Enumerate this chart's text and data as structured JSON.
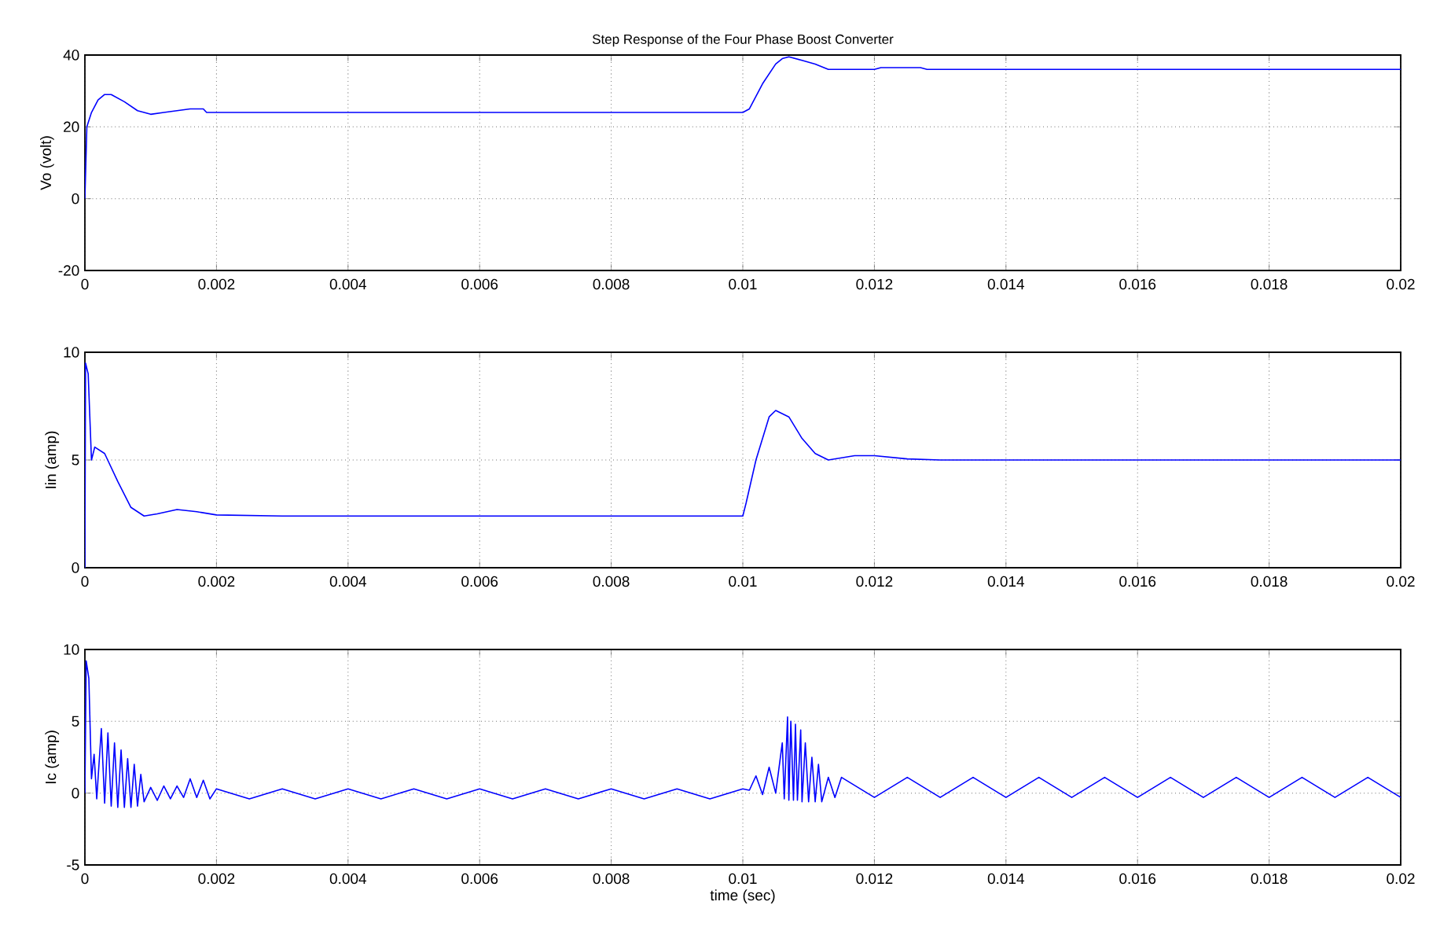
{
  "chart_data": [
    {
      "type": "line",
      "title": "Step Response of the Four Phase Boost Converter",
      "ylabel": "Vo (volt)",
      "x": [
        0,
        3e-05,
        0.0001,
        0.0002,
        0.0003,
        0.0004,
        0.0006,
        0.0008,
        0.001,
        0.0012,
        0.0014,
        0.0016,
        0.0018,
        0.00185,
        0.01,
        0.0101,
        0.0103,
        0.0105,
        0.0106,
        0.0107,
        0.0109,
        0.0111,
        0.0113,
        0.012,
        0.0121,
        0.0127,
        0.0128,
        0.02
      ],
      "series": [
        {
          "color": "#0000ff",
          "values": [
            0,
            20,
            24,
            27.5,
            29,
            29,
            27,
            24.5,
            23.5,
            24,
            24.5,
            25,
            25,
            24,
            24,
            25,
            32,
            37.5,
            39,
            39.5,
            38.5,
            37.5,
            36,
            36,
            36.5,
            36.5,
            36,
            36
          ]
        }
      ],
      "xlim": [
        0,
        0.02
      ],
      "ylim": [
        -20,
        40
      ],
      "xticks": [
        0,
        0.002,
        0.004,
        0.006,
        0.008,
        0.01,
        0.012,
        0.014,
        0.016,
        0.018,
        0.02
      ],
      "yticks": [
        -20,
        0,
        20,
        40
      ],
      "grid": true
    },
    {
      "type": "line",
      "ylabel": "Iin (amp)",
      "x": [
        0,
        1e-05,
        5e-05,
        0.0001,
        0.00015,
        0.0003,
        0.0005,
        0.0007,
        0.0009,
        0.0011,
        0.0014,
        0.0017,
        0.002,
        0.003,
        0.01,
        0.01005,
        0.0102,
        0.0104,
        0.0105,
        0.0107,
        0.0109,
        0.0111,
        0.0113,
        0.0117,
        0.012,
        0.0125,
        0.013,
        0.02
      ],
      "series": [
        {
          "color": "#0000ff",
          "values": [
            0,
            9.5,
            9,
            5,
            5.6,
            5.3,
            4,
            2.8,
            2.4,
            2.5,
            2.7,
            2.6,
            2.45,
            2.4,
            2.4,
            3,
            5,
            7,
            7.3,
            7,
            6,
            5.3,
            5,
            5.2,
            5.2,
            5.05,
            5,
            5
          ]
        }
      ],
      "xlim": [
        0,
        0.02
      ],
      "ylim": [
        0,
        10
      ],
      "xticks": [
        0,
        0.002,
        0.004,
        0.006,
        0.008,
        0.01,
        0.012,
        0.014,
        0.016,
        0.018,
        0.02
      ],
      "yticks": [
        0,
        5,
        10
      ],
      "grid": true
    },
    {
      "type": "line",
      "ylabel": "Ic (amp)",
      "xlabel": "time (sec)",
      "x": [
        0,
        2e-05,
        6e-05,
        0.0001,
        0.00014,
        0.00018,
        0.00025,
        0.0003,
        0.00035,
        0.0004,
        0.00045,
        0.0005,
        0.00055,
        0.0006,
        0.00065,
        0.0007,
        0.00075,
        0.0008,
        0.00085,
        0.0009,
        0.001,
        0.0011,
        0.0012,
        0.0013,
        0.0014,
        0.0015,
        0.0016,
        0.0017,
        0.0018,
        0.0019,
        0.002,
        0.0025,
        0.003,
        0.0035,
        0.004,
        0.0045,
        0.005,
        0.0055,
        0.006,
        0.0065,
        0.007,
        0.0075,
        0.008,
        0.0085,
        0.009,
        0.0095,
        0.01,
        0.0101,
        0.0102,
        0.0103,
        0.0104,
        0.0105,
        0.0106,
        0.01063,
        0.01068,
        0.0107,
        0.01073,
        0.01077,
        0.0108,
        0.01083,
        0.01088,
        0.0109,
        0.01095,
        0.011,
        0.01105,
        0.0111,
        0.01115,
        0.0112,
        0.0113,
        0.0114,
        0.0115,
        0.012,
        0.0125,
        0.013,
        0.0135,
        0.014,
        0.0145,
        0.015,
        0.0155,
        0.016,
        0.0165,
        0.017,
        0.0175,
        0.018,
        0.0185,
        0.019,
        0.0195,
        0.02
      ],
      "series": [
        {
          "color": "#0000ff",
          "values": [
            0,
            9.2,
            8,
            1,
            2.7,
            -0.4,
            4.5,
            -0.7,
            4.2,
            -0.9,
            3.5,
            -1,
            3,
            -1,
            2.4,
            -1,
            2,
            -0.9,
            1.3,
            -0.6,
            0.4,
            -0.5,
            0.5,
            -0.4,
            0.5,
            -0.3,
            1,
            -0.3,
            0.9,
            -0.4,
            0.3,
            -0.4,
            0.3,
            -0.4,
            0.3,
            -0.4,
            0.3,
            -0.4,
            0.3,
            -0.4,
            0.3,
            -0.4,
            0.3,
            -0.4,
            0.3,
            -0.4,
            0.3,
            0.2,
            1.2,
            -0.1,
            1.8,
            0,
            3.5,
            -0.4,
            5.3,
            -0.5,
            5,
            -0.5,
            4.8,
            -0.5,
            4.4,
            -0.6,
            3.5,
            -0.6,
            2.5,
            -0.6,
            2,
            -0.6,
            1.1,
            -0.3,
            1.1,
            -0.3,
            1.1,
            -0.3,
            1.1,
            -0.3,
            1.1,
            -0.3,
            1.1,
            -0.3,
            1.1,
            -0.3,
            1.1,
            -0.3,
            1.1,
            -0.3,
            1.1,
            -0.3
          ]
        }
      ],
      "xlim": [
        0,
        0.02
      ],
      "ylim": [
        -5,
        10
      ],
      "xticks": [
        0,
        0.002,
        0.004,
        0.006,
        0.008,
        0.01,
        0.012,
        0.014,
        0.016,
        0.018,
        0.02
      ],
      "yticks": [
        -5,
        0,
        5,
        10
      ],
      "grid": true
    }
  ]
}
